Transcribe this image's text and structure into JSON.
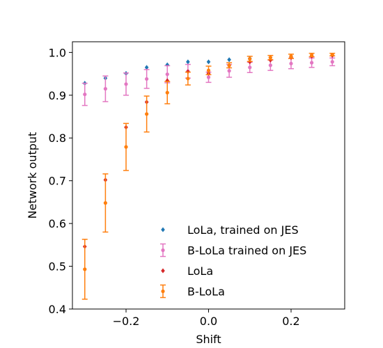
{
  "chart_data": {
    "type": "scatter",
    "title": "",
    "xlabel": "Shift",
    "ylabel": "Network output",
    "xlim": [
      -0.33,
      0.33
    ],
    "ylim": [
      0.4,
      1.025
    ],
    "xticks": [
      -0.2,
      0.0,
      0.2
    ],
    "xtick_labels": [
      "−0.2",
      "0.0",
      "0.2"
    ],
    "yticks": [
      0.4,
      0.5,
      0.6,
      0.7,
      0.8,
      0.9,
      1.0
    ],
    "ytick_labels": [
      "0.4",
      "0.5",
      "0.6",
      "0.7",
      "0.8",
      "0.9",
      "1.0"
    ],
    "grid": false,
    "legend_position": "lower-right",
    "x": [
      -0.3,
      -0.25,
      -0.2,
      -0.15,
      -0.1,
      -0.05,
      0.0,
      0.05,
      0.1,
      0.15,
      0.2,
      0.25,
      0.3
    ],
    "series": [
      {
        "name": "LoLa, trained on JES",
        "color": "#1f77b4",
        "marker": "diamond",
        "errorbars": false,
        "values": [
          0.928,
          0.94,
          0.951,
          0.965,
          0.971,
          0.978,
          0.978,
          0.983,
          0.986,
          0.988,
          0.99,
          0.991,
          0.993
        ]
      },
      {
        "name": "B-LoLa trained on JES",
        "color": "#e377c2",
        "marker": "circle",
        "errorbars": true,
        "values": [
          0.902,
          0.915,
          0.926,
          0.938,
          0.949,
          0.956,
          0.942,
          0.957,
          0.965,
          0.97,
          0.974,
          0.976,
          0.978
        ],
        "errors": [
          0.026,
          0.03,
          0.026,
          0.022,
          0.02,
          0.016,
          0.012,
          0.015,
          0.012,
          0.012,
          0.012,
          0.011,
          0.009
        ]
      },
      {
        "name": "LoLa",
        "color": "#d62728",
        "marker": "diamond",
        "errorbars": false,
        "values": [
          0.546,
          0.702,
          0.825,
          0.884,
          0.934,
          0.955,
          0.951,
          0.969,
          0.978,
          0.982,
          0.988,
          0.991,
          0.993
        ]
      },
      {
        "name": "B-LoLa",
        "color": "#ff7f0e",
        "marker": "circle",
        "errorbars": true,
        "values": [
          0.493,
          0.648,
          0.779,
          0.856,
          0.906,
          0.939,
          0.958,
          0.97,
          0.985,
          0.988,
          0.991,
          0.994,
          0.995
        ],
        "errors": [
          0.07,
          0.068,
          0.055,
          0.042,
          0.026,
          0.015,
          0.01,
          0.006,
          0.006,
          0.005,
          0.005,
          0.004,
          0.003
        ]
      }
    ],
    "legend_order": [
      0,
      1,
      2,
      3
    ]
  }
}
